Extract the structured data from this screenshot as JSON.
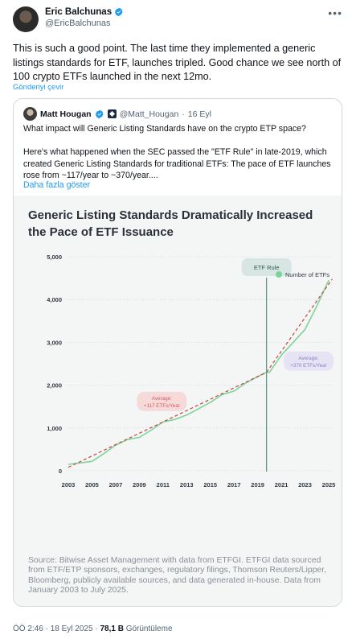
{
  "tweet": {
    "author_name": "Eric Balchunas",
    "handle": "@EricBalchunas",
    "text": "This is such a good point. The last time they implemented a generic listings standards for ETF, launches tripled. Good chance we see north of 100 crypto ETFs launched in the next 12mo.",
    "translate_label": "Gönderiyi çevir",
    "more_icon": "more-horizontal-icon"
  },
  "quote": {
    "author_name": "Matt Hougan",
    "handle": "@Matt_Hougan",
    "separator": "·",
    "date": "16 Eyl",
    "paragraph1": "What impact will Generic Listing Standards have on the crypto ETP space?",
    "paragraph2": "Here's what happened when the SEC passed the \"ETF Rule\" in late-2019, which created Generic Listing Standards for traditional ETFs: The pace of ETF launches rose from ~117/year to ~370/year....",
    "show_more": "Daha fazla göster"
  },
  "figure": {
    "source_note": "Source: Bitwise Asset Management with data from ETFGI. ETFGI data sourced from ETF/ETP sponsors, exchanges, regulatory filings, Thomson Reuters/Lipper, Bloomberg, publicly available sources, and data generated in-house. Data from January 2003 to July 2025."
  },
  "chart_data": {
    "type": "line",
    "title": "Generic Listing Standards Dramatically Increased the Pace of ETF Issuance",
    "xlabel": "",
    "ylabel": "",
    "xlim": [
      2003,
      2025
    ],
    "ylim": [
      0,
      5000
    ],
    "y_ticks": [
      0,
      1000,
      2000,
      3000,
      4000,
      5000
    ],
    "y_tick_labels": [
      "0",
      "1,000",
      "2,000",
      "3,000",
      "4,000",
      "5,000"
    ],
    "x_ticks": [
      2003,
      2005,
      2007,
      2009,
      2011,
      2013,
      2015,
      2017,
      2019,
      2021,
      2023,
      2025
    ],
    "legend": {
      "position": "top-right",
      "label": "Number of ETFs"
    },
    "grid": true,
    "series": [
      {
        "name": "Number of ETFs",
        "color": "#7dd49a",
        "x": [
          2003,
          2004,
          2005,
          2006,
          2007,
          2008,
          2009,
          2010,
          2011,
          2012,
          2013,
          2014,
          2015,
          2016,
          2017,
          2018,
          2019,
          2019.75,
          2020,
          2021,
          2022,
          2023,
          2024,
          2025
        ],
        "y": [
          150,
          185,
          220,
          400,
          600,
          730,
          780,
          950,
          1140,
          1200,
          1300,
          1450,
          1600,
          1780,
          1860,
          2050,
          2200,
          2300,
          2300,
          2700,
          3000,
          3300,
          3850,
          4450
        ]
      },
      {
        "name": "",
        "color": "#c9504a",
        "dashed": true,
        "x": [
          2003,
          2019.75
        ],
        "y": [
          80,
          2300
        ]
      },
      {
        "name": "",
        "color": "#c9504a",
        "dashed": true,
        "x": [
          2019.75,
          2025.3
        ],
        "y": [
          2300,
          4480
        ]
      }
    ],
    "annotations": [
      {
        "label": "ETF Rule",
        "x": 2019.75,
        "type": "vertical-line",
        "color": "#4b8a74"
      },
      {
        "label_line1": "Average:",
        "label_line2": "+117 ETFs/Year",
        "x": 2010.9,
        "y": 1620,
        "color": "#d85a5a",
        "bg": "#f6dada"
      },
      {
        "label_line1": "Average:",
        "label_line2": "+370 ETFs/Year",
        "x": 2023.3,
        "y": 2560,
        "color": "#8b84c8",
        "bg": "#e6e3f4"
      }
    ]
  },
  "footer": {
    "time": "ÖÖ 2:46",
    "separator": "·",
    "date": "18 Eyl 2025",
    "views_count": "78,1 B",
    "views_label": "Görüntüleme"
  }
}
